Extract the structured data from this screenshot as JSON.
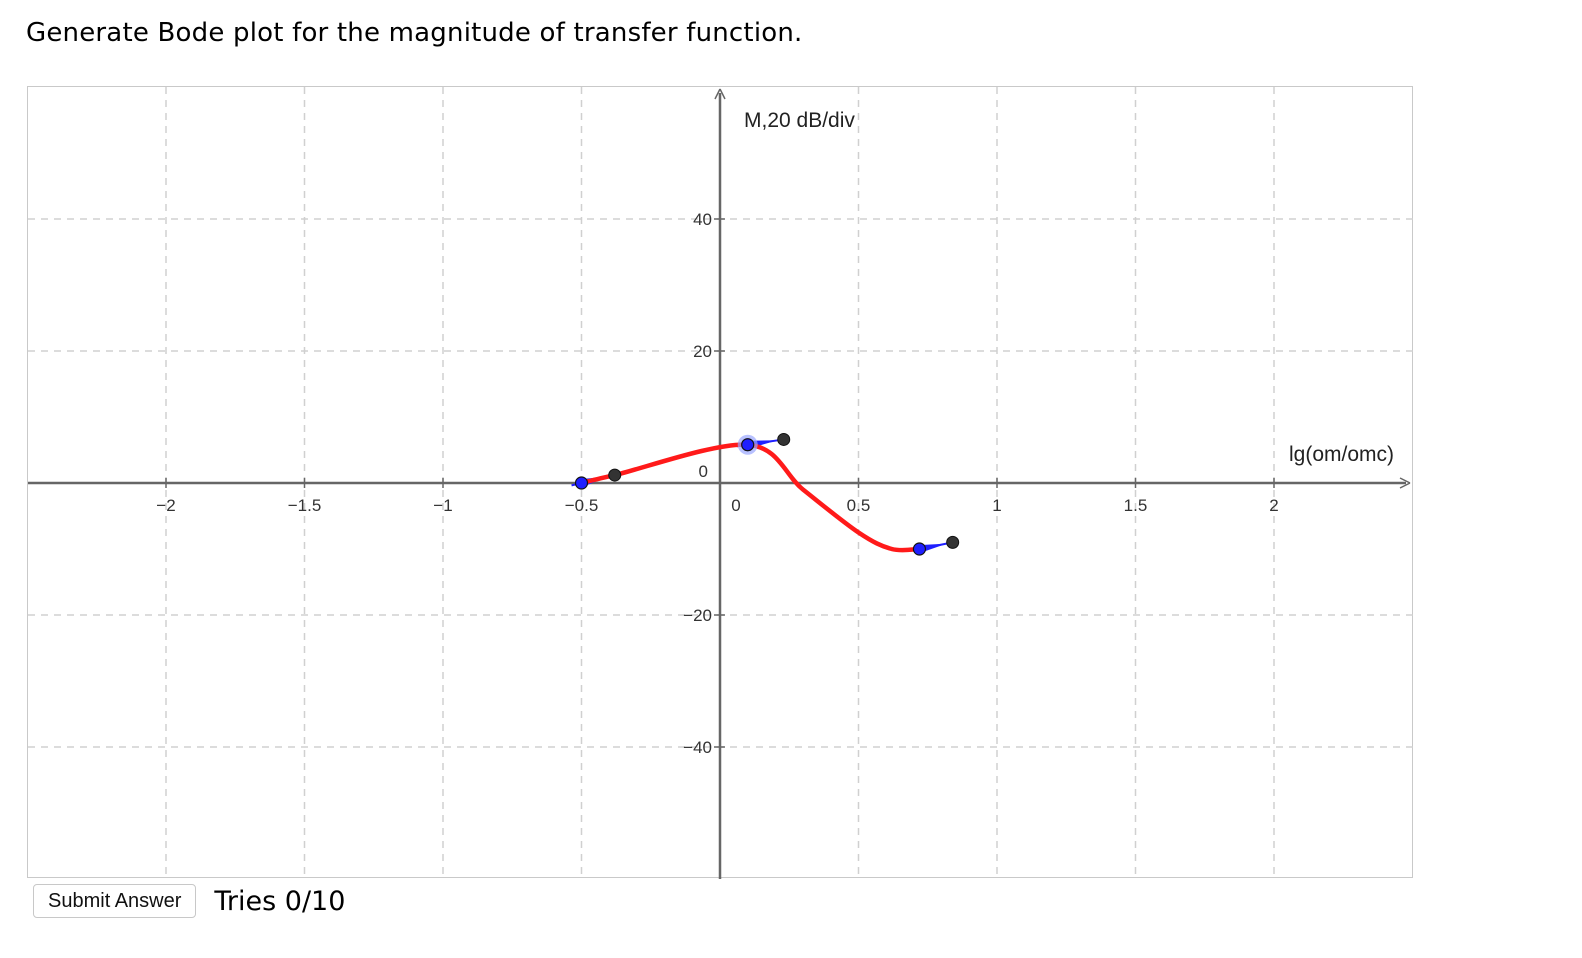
{
  "prompt": "Generate Bode plot for the magnitude of transfer function.",
  "controls": {
    "submit_label": "Submit Answer",
    "tries_label": "Tries 0/10"
  },
  "chart_data": {
    "type": "line",
    "xlabel": "lg(om/omc)",
    "ylabel": "M,20 dB/div",
    "xlim": [
      -2.2,
      2.0
    ],
    "ylim": [
      -60,
      60
    ],
    "grid": true,
    "x_ticks": [
      {
        "v": -2,
        "label": "−2"
      },
      {
        "v": -1.5,
        "label": "−1.5"
      },
      {
        "v": -1,
        "label": "−1"
      },
      {
        "v": -0.5,
        "label": "−0.5"
      },
      {
        "v": 0,
        "label": "0"
      },
      {
        "v": 0.5,
        "label": "0.5"
      },
      {
        "v": 1,
        "label": "1"
      },
      {
        "v": 1.5,
        "label": "1.5"
      },
      {
        "v": 2,
        "label": "2"
      }
    ],
    "y_ticks": [
      {
        "v": 40,
        "label": "40"
      },
      {
        "v": 20,
        "label": "20"
      },
      {
        "v": -20,
        "label": "−20"
      },
      {
        "v": -40,
        "label": "−40"
      }
    ],
    "origin_labels": [
      "0",
      "0"
    ],
    "colors": {
      "curve": "#ff1a1a",
      "tangent": "#1f1fff",
      "handle": "#333333",
      "point": "#1f1fff",
      "grid": "#d0d0d0",
      "axis": "#666666"
    },
    "curve": {
      "x": [
        -0.5,
        -0.38,
        0.1,
        0.3,
        0.5,
        0.62,
        0.72
      ],
      "y": [
        0,
        1.2,
        5.8,
        -1.0,
        -7.5,
        -10.0,
        -10.0
      ]
    },
    "tangent_handles": [
      {
        "point": [
          -0.5,
          0
        ],
        "handle": [
          -0.38,
          1.2
        ]
      },
      {
        "point": [
          0.1,
          5.8
        ],
        "handle": [
          0.23,
          6.6
        ]
      },
      {
        "point": [
          0.72,
          -10.0
        ],
        "handle": [
          0.84,
          -9.0
        ]
      }
    ]
  }
}
